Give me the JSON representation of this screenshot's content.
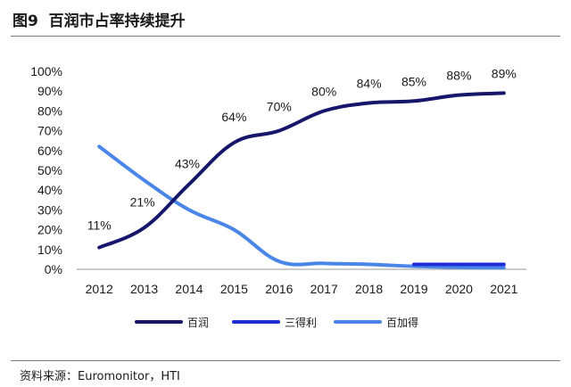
{
  "figure": {
    "title": "图9  百润市占率持续提升",
    "source": "资料来源：Euromonitor，HTI"
  },
  "chart_data": {
    "type": "line",
    "x": [
      "2012",
      "2013",
      "2014",
      "2015",
      "2016",
      "2017",
      "2018",
      "2019",
      "2020",
      "2021"
    ],
    "ylim": [
      0,
      100
    ],
    "yticks": [
      "0%",
      "10%",
      "20%",
      "30%",
      "40%",
      "50%",
      "60%",
      "70%",
      "80%",
      "90%",
      "100%"
    ],
    "grid": false,
    "legend_position": "bottom",
    "series": [
      {
        "name": "百润",
        "color": "#16166b",
        "values": [
          11,
          21,
          43,
          64,
          70,
          80,
          84,
          85,
          88,
          89
        ],
        "labels": [
          "11%",
          "21%",
          "43%",
          "64%",
          "70%",
          "80%",
          "84%",
          "85%",
          "88%",
          "89%"
        ]
      },
      {
        "name": "三得利",
        "color": "#1f2fd8",
        "values": [
          null,
          null,
          null,
          null,
          null,
          null,
          null,
          2.5,
          2.5,
          2.5
        ]
      },
      {
        "name": "百加得",
        "color": "#4a86e8",
        "values": [
          62,
          45,
          30,
          20,
          4,
          3,
          2.5,
          1.5,
          1,
          0.8
        ]
      }
    ]
  }
}
